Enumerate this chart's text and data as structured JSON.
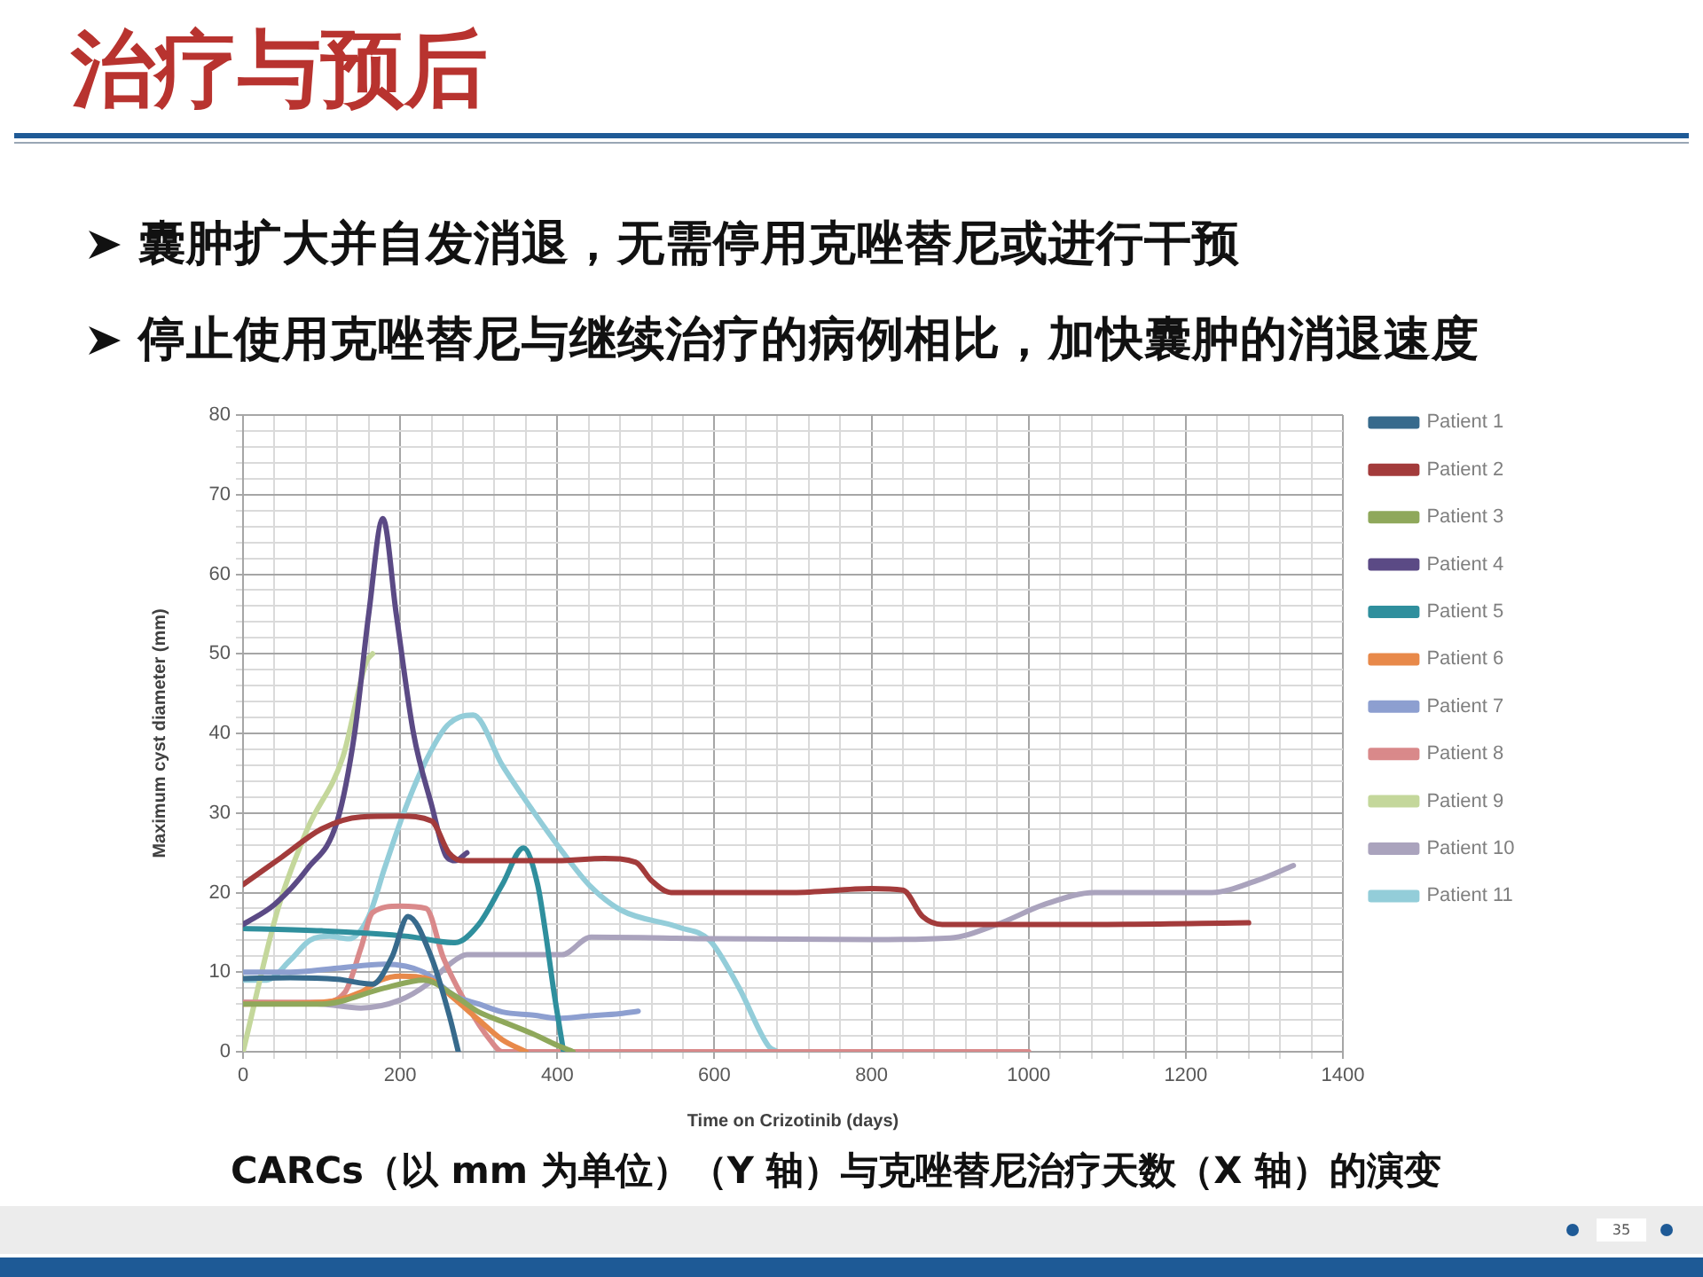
{
  "chart_data": {
    "type": "line",
    "title": "治疗与预后",
    "annotations": [
      "囊肿扩大并自发消退，无需停用克唑替尼或进行干预",
      "停止使用克唑替尼与继续治疗的病例相比，加快囊肿的消退速度",
      "CARCs（以 mm 为单位）（Y 轴）与克唑替尼治疗天数（X 轴）的演变",
      "35"
    ],
    "xlabel": "Time on Crizotinib (days)",
    "ylabel": "Maximum cyst diameter (mm)",
    "xlim": [
      0,
      1400
    ],
    "ylim": [
      0,
      80
    ],
    "xticks": [
      0,
      {
        "value": 40,
        "label": null
      },
      {
        "value": 80,
        "label": null
      },
      {
        "value": 120,
        "label": null
      },
      {
        "value": 160,
        "label": null
      },
      200,
      {
        "value": 240,
        "label": null
      },
      {
        "value": 280,
        "label": null
      },
      {
        "value": 320,
        "label": null
      },
      {
        "value": 360,
        "label": null
      },
      400,
      {
        "value": 440,
        "label": null
      },
      {
        "value": 480,
        "label": null
      },
      {
        "value": 520,
        "label": null
      },
      {
        "value": 560,
        "label": null
      },
      600,
      {
        "value": 640,
        "label": null
      },
      {
        "value": 680,
        "label": null
      },
      {
        "value": 720,
        "label": null
      },
      {
        "value": 760,
        "label": null
      },
      800,
      {
        "value": 840,
        "label": null
      },
      {
        "value": 880,
        "label": null
      },
      {
        "value": 920,
        "label": null
      },
      {
        "value": 960,
        "label": null
      },
      1000,
      {
        "value": 1040,
        "label": null
      },
      {
        "value": 1080,
        "label": null
      },
      {
        "value": 1120,
        "label": null
      },
      {
        "value": 1160,
        "label": null
      },
      1200,
      {
        "value": 1240,
        "label": null
      },
      {
        "value": 1280,
        "label": null
      },
      {
        "value": 1320,
        "label": null
      },
      {
        "value": 1360,
        "label": null
      },
      1400
    ],
    "yticks": [
      0,
      {
        "value": 2,
        "label": null
      },
      {
        "value": 4,
        "label": null
      },
      {
        "value": 6,
        "label": null
      },
      {
        "value": 8,
        "label": null
      },
      10,
      {
        "value": 12,
        "label": null
      },
      {
        "value": 14,
        "label": null
      },
      {
        "value": 16,
        "label": null
      },
      {
        "value": 18,
        "label": null
      },
      20,
      {
        "value": 22,
        "label": null
      },
      {
        "value": 24,
        "label": null
      },
      {
        "value": 26,
        "label": null
      },
      {
        "value": 28,
        "label": null
      },
      30,
      {
        "value": 32,
        "label": null
      },
      {
        "value": 34,
        "label": null
      },
      {
        "value": 36,
        "label": null
      },
      {
        "value": 38,
        "label": null
      },
      40,
      {
        "value": 42,
        "label": null
      },
      {
        "value": 44,
        "label": null
      },
      {
        "value": 46,
        "label": null
      },
      {
        "value": 48,
        "label": null
      },
      50,
      {
        "value": 52,
        "label": null
      },
      {
        "value": 54,
        "label": null
      },
      {
        "value": 56,
        "label": null
      },
      {
        "value": 58,
        "label": null
      },
      60,
      {
        "value": 62,
        "label": null
      },
      {
        "value": 64,
        "label": null
      },
      {
        "value": 66,
        "label": null
      },
      {
        "value": 68,
        "label": null
      },
      70,
      {
        "value": 72,
        "label": null
      },
      {
        "value": 74,
        "label": null
      },
      {
        "value": 76,
        "label": null
      },
      {
        "value": 78,
        "label": null
      },
      80
    ],
    "grid": true,
    "legend": "right",
    "marker": "none",
    "series": [
      {
        "name": "Patient 1",
        "color": "#376a8c",
        "x": [
          0,
          60,
          120,
          165,
          190,
          210,
          240,
          263,
          274
        ],
        "values": [
          9.2,
          9.3,
          9.1,
          8.5,
          12,
          17,
          11.8,
          4.4,
          0
        ]
      },
      {
        "name": "Patient 2",
        "color": "#a33b3b",
        "x": [
          0,
          50,
          100,
          150,
          200,
          240,
          262,
          280,
          400,
          460,
          500,
          520,
          545,
          700,
          800,
          840,
          865,
          890,
          1100,
          1280
        ],
        "values": [
          21,
          24.5,
          28,
          29.5,
          29.6,
          29,
          25,
          24,
          24,
          24.3,
          23.8,
          21.5,
          20,
          20,
          20.5,
          20.3,
          17,
          16,
          16,
          16.2
        ]
      },
      {
        "name": "Patient 3",
        "color": "#8fa85b",
        "x": [
          0,
          100,
          180,
          230,
          270,
          300,
          330,
          370,
          400,
          420
        ],
        "values": [
          6,
          6,
          8,
          9,
          7,
          5,
          3.8,
          2.2,
          0.8,
          0
        ]
      },
      {
        "name": "Patient 4",
        "color": "#5b4a85",
        "x": [
          0,
          40,
          82,
          120,
          142,
          160,
          178,
          195,
          217,
          240,
          259,
          270,
          285
        ],
        "values": [
          16,
          18.5,
          23,
          29,
          40,
          55,
          67,
          55,
          40,
          31,
          24.5,
          24,
          25
        ]
      },
      {
        "name": "Patient 5",
        "color": "#2f8f9d",
        "x": [
          0,
          100,
          210,
          270,
          300,
          330,
          357,
          375,
          385,
          395,
          408
        ],
        "values": [
          15.5,
          15.2,
          14.5,
          13.7,
          16,
          21,
          25.6,
          21,
          15,
          8,
          0
        ]
      },
      {
        "name": "Patient 6",
        "color": "#e8894a",
        "x": [
          0,
          100,
          150,
          175,
          200,
          240,
          265,
          300,
          330,
          360
        ],
        "values": [
          6,
          6.2,
          7.5,
          9,
          9.5,
          9,
          7,
          4,
          1.5,
          0
        ]
      },
      {
        "name": "Patient 7",
        "color": "#8d9fd0",
        "x": [
          0,
          60,
          120,
          180,
          230,
          270,
          300,
          330,
          370,
          400,
          440,
          480,
          503
        ],
        "values": [
          10,
          10,
          10.5,
          11,
          10,
          7,
          6,
          5,
          4.6,
          4.2,
          4.5,
          4.8,
          5.1
        ]
      },
      {
        "name": "Patient 8",
        "color": "#d9898a",
        "x": [
          0,
          100,
          130,
          150,
          165,
          200,
          233,
          255,
          285,
          315,
          330,
          1000
        ],
        "values": [
          6.2,
          6.2,
          7.5,
          13,
          17.5,
          18.3,
          18,
          11.8,
          5.9,
          1.4,
          0,
          0
        ]
      },
      {
        "name": "Patient 9",
        "color": "#c4d79b",
        "x": [
          0,
          44,
          82,
          127,
          157,
          165
        ],
        "values": [
          0,
          17.8,
          28,
          37,
          49,
          50
        ]
      },
      {
        "name": "Patient 10",
        "color": "#aaa3bd",
        "x": [
          0,
          100,
          150,
          200,
          235,
          263,
          285,
          330,
          406,
          443,
          600,
          800,
          900,
          960,
          1020,
          1084,
          1233,
          1290,
          1337
        ],
        "values": [
          6.2,
          6,
          5.5,
          6.5,
          8.5,
          11,
          12.2,
          12.2,
          12.2,
          14.4,
          14.2,
          14.1,
          14.3,
          16,
          18.5,
          20,
          20,
          21.5,
          23.4
        ]
      },
      {
        "name": "Patient 11",
        "color": "#93cdd9",
        "x": [
          0,
          30,
          60,
          85,
          110,
          135,
          160,
          180,
          203,
          230,
          260,
          293,
          330,
          368,
          406,
          443,
          481,
          556,
          594,
          631,
          669,
          680
        ],
        "values": [
          9,
          9,
          11.5,
          14,
          14.5,
          14.2,
          17,
          23,
          29.6,
          36,
          41,
          42.3,
          36,
          30.4,
          25.2,
          20.7,
          17.8,
          15.6,
          14,
          8.1,
          0.7,
          0
        ]
      }
    ]
  }
}
